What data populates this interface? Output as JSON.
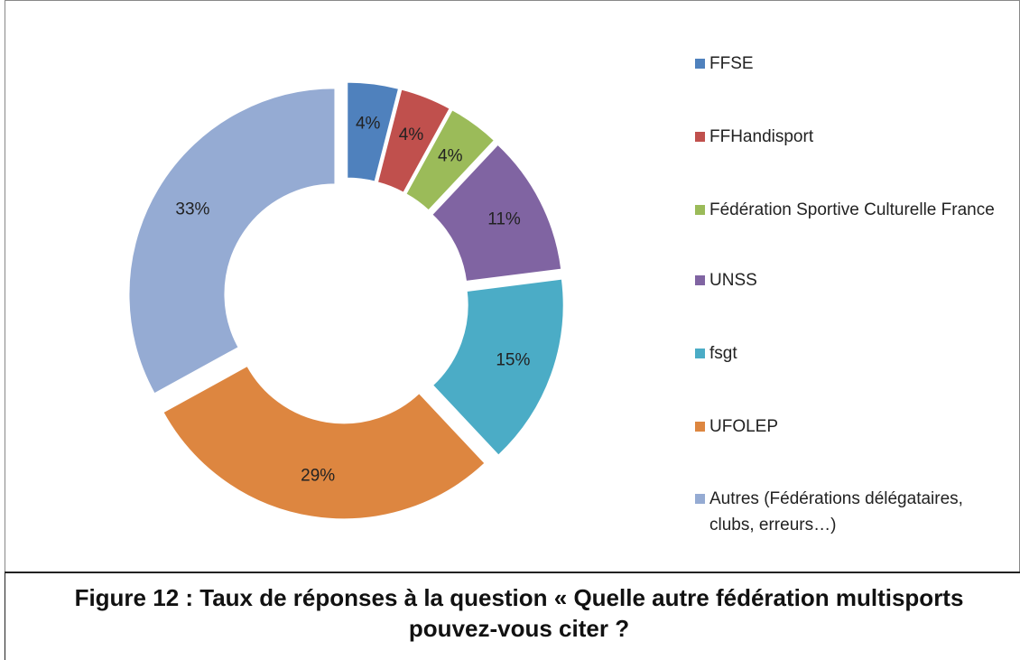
{
  "chart_data": {
    "type": "donut",
    "categories": [
      "FFSE",
      "FFHandisport",
      "Fédération Sportive Culturelle France",
      "UNSS",
      "fsgt",
      "UFOLEP",
      "Autres (Fédérations délégataires, clubs, erreurs…)"
    ],
    "values": [
      4,
      4,
      4,
      11,
      15,
      29,
      33
    ],
    "value_labels": [
      "4%",
      "4%",
      "4%",
      "11%",
      "15%",
      "29%",
      "33%"
    ],
    "colors": [
      "#4f81bd",
      "#c0504d",
      "#9bbb59",
      "#8064a2",
      "#4bacc6",
      "#dd8640",
      "#95abd3"
    ],
    "legend": "right"
  },
  "caption": "Figure 12 : Taux de réponses à la question « Quelle autre fédération multisports pouvez-vous citer ?"
}
